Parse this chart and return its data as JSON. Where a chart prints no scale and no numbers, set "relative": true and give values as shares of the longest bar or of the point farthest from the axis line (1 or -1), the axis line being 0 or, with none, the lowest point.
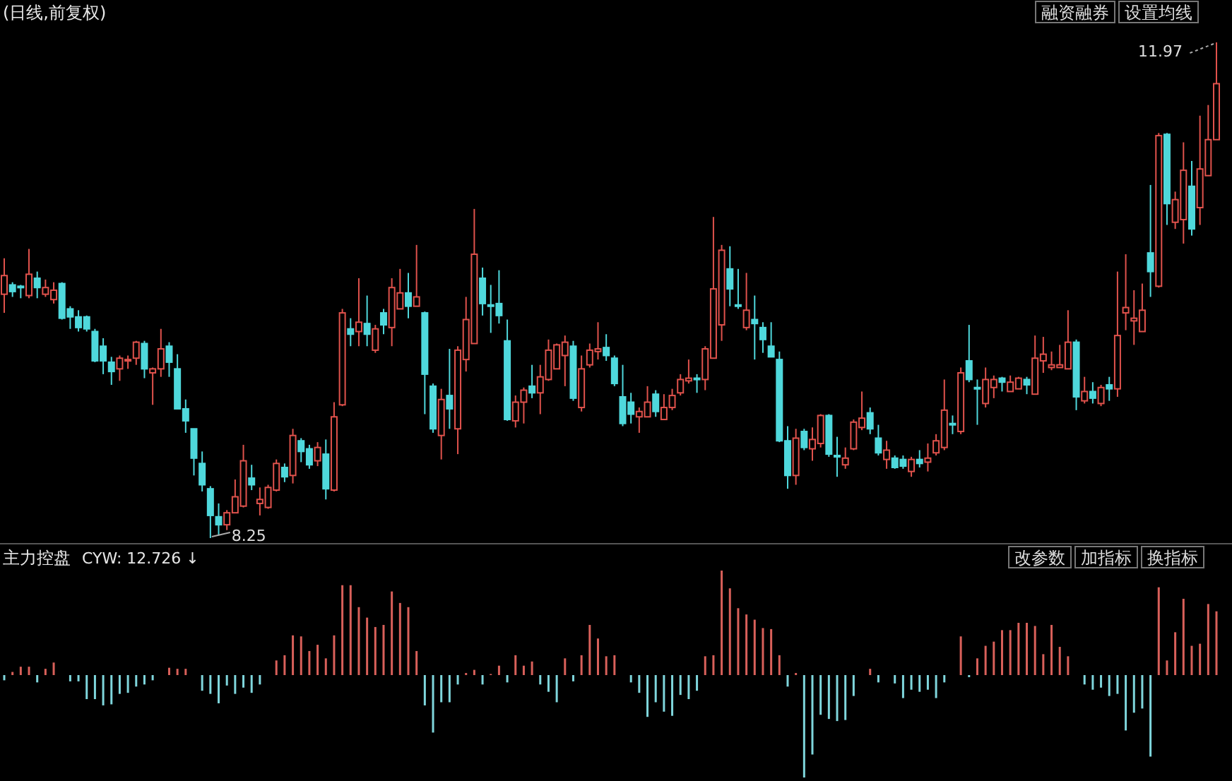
{
  "chart_data": [
    {
      "type": "candlestick",
      "title": "(日线,前复权)",
      "categories": [
        null,
        null,
        null,
        null,
        null,
        null,
        null,
        null,
        null,
        null,
        null,
        null,
        null,
        null,
        null,
        null,
        null,
        null,
        null,
        null,
        null,
        null,
        null,
        null,
        null,
        null,
        null,
        null,
        null,
        null,
        null,
        null,
        null,
        null,
        null,
        null,
        null,
        null,
        null,
        null,
        null,
        null,
        null,
        null,
        null,
        null,
        null,
        null,
        null,
        null,
        null,
        null,
        null,
        null,
        null,
        null,
        null,
        null,
        null,
        null,
        null,
        null,
        null,
        null,
        null,
        null,
        null,
        null,
        null,
        null,
        null,
        null,
        null,
        null,
        null,
        null,
        null,
        null,
        null,
        null,
        null,
        null,
        null,
        null,
        null,
        null,
        null,
        null,
        null,
        null,
        null,
        null,
        null,
        null,
        null,
        null,
        null,
        null,
        null,
        null,
        null,
        null,
        null,
        null,
        null,
        null,
        null,
        null,
        null,
        null,
        null,
        null,
        null,
        null,
        null,
        null,
        null,
        null,
        null,
        null,
        null,
        null,
        null,
        null,
        null,
        null,
        null,
        null,
        null,
        null,
        null,
        null,
        null,
        null,
        null,
        null,
        null,
        null,
        null,
        null,
        null,
        null,
        null,
        null,
        null,
        null,
        null,
        null
      ],
      "ohlc": [
        [
          10.08,
          10.35,
          9.94,
          10.22
        ],
        [
          10.15,
          10.17,
          10.06,
          10.1
        ],
        [
          10.14,
          10.15,
          10.05,
          10.13
        ],
        [
          10.07,
          10.42,
          10.05,
          10.23
        ],
        [
          10.2,
          10.25,
          10.05,
          10.13
        ],
        [
          10.08,
          10.19,
          10.06,
          10.13
        ],
        [
          10.04,
          10.17,
          10.01,
          10.11
        ],
        [
          10.16,
          10.17,
          9.89,
          9.9
        ],
        [
          9.97,
          9.99,
          9.82,
          9.91
        ],
        [
          9.91,
          9.96,
          9.8,
          9.83
        ],
        [
          9.91,
          9.92,
          9.8,
          9.82
        ],
        [
          9.8,
          9.82,
          9.57,
          9.58
        ],
        [
          9.69,
          9.75,
          9.48,
          9.58
        ],
        [
          9.57,
          9.61,
          9.4,
          9.5
        ],
        [
          9.52,
          9.62,
          9.43,
          9.6
        ],
        [
          9.58,
          9.62,
          9.52,
          9.59
        ],
        [
          9.6,
          9.73,
          9.55,
          9.72
        ],
        [
          9.71,
          9.73,
          9.45,
          9.52
        ],
        [
          9.49,
          9.53,
          9.25,
          9.52
        ],
        [
          9.52,
          9.82,
          9.46,
          9.67
        ],
        [
          9.69,
          9.72,
          9.46,
          9.57
        ],
        [
          9.52,
          9.63,
          9.22,
          9.22
        ],
        [
          9.22,
          9.29,
          9.04,
          9.13
        ],
        [
          9.07,
          9.07,
          8.72,
          8.85
        ],
        [
          8.81,
          8.9,
          8.6,
          8.65
        ],
        [
          8.62,
          8.64,
          8.25,
          8.42
        ],
        [
          8.41,
          8.51,
          8.27,
          8.35
        ],
        [
          8.35,
          8.46,
          8.31,
          8.44
        ],
        [
          8.44,
          8.69,
          8.44,
          8.56
        ],
        [
          8.49,
          8.95,
          8.48,
          8.83
        ],
        [
          8.7,
          8.8,
          8.61,
          8.65
        ],
        [
          8.51,
          8.63,
          8.42,
          8.54
        ],
        [
          8.48,
          8.65,
          8.47,
          8.63
        ],
        [
          8.61,
          8.84,
          8.6,
          8.81
        ],
        [
          8.78,
          8.81,
          8.67,
          8.71
        ],
        [
          8.72,
          9.07,
          8.66,
          9.02
        ],
        [
          8.98,
          9.0,
          8.82,
          8.9
        ],
        [
          8.92,
          8.95,
          8.77,
          8.8
        ],
        [
          8.83,
          8.97,
          8.79,
          8.93
        ],
        [
          8.88,
          8.99,
          8.54,
          8.62
        ],
        [
          8.61,
          9.27,
          8.6,
          9.16
        ],
        [
          9.25,
          9.97,
          9.24,
          9.94
        ],
        [
          9.82,
          9.9,
          9.69,
          9.78
        ],
        [
          9.8,
          10.2,
          9.69,
          9.87
        ],
        [
          9.86,
          10.07,
          9.69,
          9.78
        ],
        [
          9.66,
          9.85,
          9.64,
          9.82
        ],
        [
          9.94,
          9.97,
          9.78,
          9.85
        ],
        [
          9.83,
          10.2,
          9.69,
          10.13
        ],
        [
          9.97,
          10.27,
          9.97,
          10.09
        ],
        [
          10.09,
          10.24,
          9.9,
          9.99
        ],
        [
          9.99,
          10.45,
          9.99,
          10.06
        ],
        [
          9.94,
          9.95,
          9.18,
          9.48
        ],
        [
          9.39,
          9.41,
          9.04,
          9.07
        ],
        [
          9.02,
          9.37,
          8.84,
          9.29
        ],
        [
          9.32,
          9.67,
          9.07,
          9.22
        ],
        [
          9.07,
          9.69,
          8.88,
          9.66
        ],
        [
          9.59,
          10.06,
          9.5,
          9.89
        ],
        [
          9.71,
          10.72,
          9.71,
          10.38
        ],
        [
          10.2,
          10.28,
          9.92,
          10.01
        ],
        [
          10.0,
          10.15,
          9.79,
          9.99
        ],
        [
          10.01,
          10.26,
          9.86,
          9.92
        ],
        [
          9.73,
          9.89,
          9.13,
          9.14
        ],
        [
          9.13,
          9.32,
          9.08,
          9.27
        ],
        [
          9.27,
          9.38,
          9.11,
          9.36
        ],
        [
          9.39,
          9.55,
          9.3,
          9.34
        ],
        [
          9.34,
          9.55,
          9.18,
          9.46
        ],
        [
          9.44,
          9.74,
          9.43,
          9.66
        ],
        [
          9.52,
          9.71,
          9.52,
          9.7
        ],
        [
          9.62,
          9.77,
          9.39,
          9.72
        ],
        [
          9.69,
          9.73,
          9.28,
          9.3
        ],
        [
          9.23,
          9.62,
          9.2,
          9.52
        ],
        [
          9.55,
          9.71,
          9.53,
          9.66
        ],
        [
          9.65,
          9.87,
          9.59,
          9.67
        ],
        [
          9.68,
          9.78,
          9.58,
          9.62
        ],
        [
          9.6,
          9.62,
          9.39,
          9.41
        ],
        [
          9.31,
          9.55,
          9.09,
          9.11
        ],
        [
          9.27,
          9.34,
          9.11,
          9.18
        ],
        [
          9.16,
          9.23,
          9.04,
          9.2
        ],
        [
          9.16,
          9.39,
          9.16,
          9.27
        ],
        [
          9.33,
          9.36,
          9.16,
          9.2
        ],
        [
          9.14,
          9.33,
          9.14,
          9.23
        ],
        [
          9.23,
          9.37,
          9.21,
          9.32
        ],
        [
          9.34,
          9.48,
          9.32,
          9.44
        ],
        [
          9.43,
          9.59,
          9.41,
          9.45
        ],
        [
          9.45,
          9.48,
          9.34,
          9.44
        ],
        [
          9.44,
          9.69,
          9.36,
          9.67
        ],
        [
          9.6,
          10.66,
          9.6,
          10.12
        ],
        [
          9.85,
          10.45,
          9.73,
          10.41
        ],
        [
          10.27,
          10.44,
          9.99,
          10.12
        ],
        [
          10.0,
          10.27,
          9.97,
          9.99
        ],
        [
          9.83,
          10.24,
          9.81,
          9.96
        ],
        [
          9.89,
          10.07,
          9.59,
          9.86
        ],
        [
          9.83,
          9.87,
          9.64,
          9.74
        ],
        [
          9.69,
          9.87,
          9.61,
          9.61
        ],
        [
          9.59,
          9.65,
          8.97,
          8.98
        ],
        [
          8.98,
          9.09,
          8.62,
          8.72
        ],
        [
          8.72,
          9.07,
          8.65,
          9.0
        ],
        [
          9.05,
          9.07,
          8.91,
          8.93
        ],
        [
          8.92,
          9.08,
          8.83,
          8.99
        ],
        [
          8.96,
          9.18,
          8.93,
          9.17
        ],
        [
          9.17,
          9.18,
          8.86,
          8.88
        ],
        [
          8.87,
          9.01,
          8.71,
          8.86
        ],
        [
          8.8,
          8.93,
          8.77,
          8.85
        ],
        [
          8.92,
          9.14,
          8.91,
          9.12
        ],
        [
          9.08,
          9.35,
          9.06,
          9.15
        ],
        [
          9.19,
          9.23,
          9.03,
          9.07
        ],
        [
          9.0,
          9.1,
          8.87,
          8.89
        ],
        [
          8.84,
          8.98,
          8.77,
          8.91
        ],
        [
          8.85,
          8.87,
          8.77,
          8.78
        ],
        [
          8.84,
          8.87,
          8.77,
          8.79
        ],
        [
          8.75,
          8.86,
          8.71,
          8.84
        ],
        [
          8.84,
          8.91,
          8.78,
          8.81
        ],
        [
          8.82,
          8.96,
          8.75,
          8.85
        ],
        [
          8.89,
          9.03,
          8.87,
          8.98
        ],
        [
          8.93,
          9.44,
          8.91,
          9.21
        ],
        [
          9.11,
          9.17,
          9.03,
          9.1
        ],
        [
          9.05,
          9.53,
          9.03,
          9.49
        ],
        [
          9.58,
          9.85,
          9.42,
          9.44
        ],
        [
          9.38,
          9.44,
          9.1,
          9.37
        ],
        [
          9.26,
          9.53,
          9.23,
          9.44
        ],
        [
          9.38,
          9.47,
          9.3,
          9.44
        ],
        [
          9.45,
          9.46,
          9.35,
          9.42
        ],
        [
          9.35,
          9.47,
          9.35,
          9.42
        ],
        [
          9.37,
          9.46,
          9.37,
          9.45
        ],
        [
          9.44,
          9.46,
          9.33,
          9.4
        ],
        [
          9.33,
          9.77,
          9.33,
          9.6
        ],
        [
          9.58,
          9.76,
          9.49,
          9.63
        ],
        [
          9.53,
          9.65,
          9.51,
          9.55
        ],
        [
          9.53,
          9.7,
          9.53,
          9.55
        ],
        [
          9.52,
          9.96,
          9.52,
          9.72
        ],
        [
          9.72,
          9.74,
          9.21,
          9.31
        ],
        [
          9.28,
          9.46,
          9.26,
          9.35
        ],
        [
          9.35,
          9.42,
          9.26,
          9.3
        ],
        [
          9.26,
          9.4,
          9.24,
          9.38
        ],
        [
          9.4,
          9.46,
          9.28,
          9.37
        ],
        [
          9.37,
          10.25,
          9.31,
          9.77
        ],
        [
          9.94,
          10.38,
          9.81,
          9.98
        ],
        [
          9.88,
          10.11,
          9.7,
          9.9
        ],
        [
          9.8,
          10.16,
          9.8,
          9.96
        ],
        [
          10.39,
          10.9,
          10.06,
          10.25
        ],
        [
          10.14,
          11.29,
          10.13,
          11.27
        ],
        [
          11.28,
          11.29,
          10.6,
          10.76
        ],
        [
          10.62,
          10.85,
          10.57,
          10.79
        ],
        [
          10.64,
          11.22,
          10.46,
          11.01
        ],
        [
          10.89,
          11.08,
          10.52,
          10.57
        ],
        [
          10.73,
          11.42,
          10.6,
          11.02
        ],
        [
          10.97,
          11.5,
          10.97,
          11.24
        ],
        [
          11.24,
          11.97,
          11.24,
          11.66
        ]
      ],
      "colors": [
        "#e0524c",
        "#4fd8dc",
        "#4fd8dc",
        "#e0524c",
        "#4fd8dc",
        "#e0524c",
        "#e0524c",
        "#4fd8dc",
        "#4fd8dc",
        "#4fd8dc",
        "#4fd8dc",
        "#4fd8dc",
        "#4fd8dc",
        "#4fd8dc",
        "#e0524c",
        "#e0524c",
        "#e0524c",
        "#4fd8dc",
        "#e0524c",
        "#e0524c",
        "#4fd8dc",
        "#4fd8dc",
        "#4fd8dc",
        "#4fd8dc",
        "#4fd8dc",
        "#4fd8dc",
        "#4fd8dc",
        "#e0524c",
        "#e0524c",
        "#e0524c",
        "#4fd8dc",
        "#e0524c",
        "#e0524c",
        "#e0524c",
        "#4fd8dc",
        "#e0524c",
        "#4fd8dc",
        "#4fd8dc",
        "#e0524c",
        "#4fd8dc",
        "#e0524c",
        "#e0524c",
        "#4fd8dc",
        "#e0524c",
        "#4fd8dc",
        "#e0524c",
        "#4fd8dc",
        "#e0524c",
        "#e0524c",
        "#4fd8dc",
        "#e0524c",
        "#4fd8dc",
        "#4fd8dc",
        "#e0524c",
        "#4fd8dc",
        "#e0524c",
        "#e0524c",
        "#e0524c",
        "#4fd8dc",
        "#4fd8dc",
        "#4fd8dc",
        "#4fd8dc",
        "#e0524c",
        "#e0524c",
        "#4fd8dc",
        "#e0524c",
        "#e0524c",
        "#e0524c",
        "#e0524c",
        "#4fd8dc",
        "#e0524c",
        "#e0524c",
        "#e0524c",
        "#4fd8dc",
        "#4fd8dc",
        "#4fd8dc",
        "#4fd8dc",
        "#e0524c",
        "#e0524c",
        "#4fd8dc",
        "#e0524c",
        "#e0524c",
        "#e0524c",
        "#e0524c",
        "#4fd8dc",
        "#e0524c",
        "#e0524c",
        "#e0524c",
        "#4fd8dc",
        "#4fd8dc",
        "#e0524c",
        "#4fd8dc",
        "#4fd8dc",
        "#4fd8dc",
        "#4fd8dc",
        "#4fd8dc",
        "#e0524c",
        "#4fd8dc",
        "#e0524c",
        "#e0524c",
        "#4fd8dc",
        "#4fd8dc",
        "#e0524c",
        "#e0524c",
        "#e0524c",
        "#4fd8dc",
        "#4fd8dc",
        "#e0524c",
        "#4fd8dc",
        "#4fd8dc",
        "#e0524c",
        "#4fd8dc",
        "#e0524c",
        "#e0524c",
        "#e0524c",
        "#4fd8dc",
        "#e0524c",
        "#4fd8dc",
        "#4fd8dc",
        "#e0524c",
        "#e0524c",
        "#4fd8dc",
        "#e0524c",
        "#e0524c",
        "#4fd8dc",
        "#e0524c",
        "#e0524c",
        "#e0524c",
        "#e0524c",
        "#e0524c",
        "#4fd8dc",
        "#e0524c",
        "#4fd8dc",
        "#e0524c",
        "#4fd8dc",
        "#e0524c",
        "#e0524c",
        "#e0524c",
        "#e0524c",
        "#4fd8dc",
        "#e0524c",
        "#4fd8dc",
        "#e0524c",
        "#e0524c",
        "#4fd8dc",
        "#e0524c",
        "#e0524c",
        "#e0524c"
      ],
      "annotations": [
        "11.97",
        "8.25",
        "融资融券",
        "设置均线"
      ]
    },
    {
      "type": "bar",
      "title": "主力控盘",
      "subtitle": "CYW: 12.726 ↓",
      "relative": true,
      "categories": [
        null,
        null,
        null,
        null,
        null,
        null,
        null,
        null,
        null,
        null,
        null,
        null,
        null,
        null,
        null,
        null,
        null,
        null,
        null,
        null,
        null,
        null,
        null,
        null,
        null,
        null,
        null,
        null,
        null,
        null,
        null,
        null,
        null,
        null,
        null,
        null,
        null,
        null,
        null,
        null,
        null,
        null,
        null,
        null,
        null,
        null,
        null,
        null,
        null,
        null,
        null,
        null,
        null,
        null,
        null,
        null,
        null,
        null,
        null,
        null,
        null,
        null,
        null,
        null,
        null,
        null,
        null,
        null,
        null,
        null,
        null,
        null,
        null,
        null,
        null,
        null,
        null,
        null,
        null,
        null,
        null,
        null,
        null,
        null,
        null,
        null,
        null,
        null,
        null,
        null,
        null,
        null,
        null,
        null,
        null,
        null,
        null,
        null,
        null,
        null,
        null,
        null,
        null,
        null,
        null,
        null,
        null,
        null,
        null,
        null,
        null,
        null,
        null,
        null,
        null,
        null,
        null,
        null,
        null,
        null,
        null,
        null,
        null,
        null,
        null,
        null,
        null,
        null,
        null,
        null,
        null,
        null,
        null,
        null,
        null,
        null,
        null,
        null,
        null,
        null,
        null,
        null,
        null,
        null,
        null,
        null,
        null,
        null
      ],
      "values": [
        -0.05,
        0.03,
        0.08,
        0.08,
        -0.07,
        0.06,
        0.12,
        0,
        -0.06,
        -0.06,
        -0.23,
        -0.23,
        -0.29,
        -0.28,
        -0.18,
        -0.17,
        -0.11,
        -0.09,
        -0.05,
        0,
        0.07,
        0.06,
        0.06,
        0,
        -0.15,
        -0.18,
        -0.27,
        -0.1,
        -0.18,
        -0.12,
        -0.17,
        -0.09,
        0,
        0.14,
        0.19,
        0.38,
        0.37,
        0.23,
        0.29,
        0.16,
        0.38,
        0.86,
        0.86,
        0.65,
        0.55,
        0.46,
        0.48,
        0.8,
        0.69,
        0.65,
        0.23,
        -0.29,
        -0.55,
        -0.26,
        -0.26,
        -0.09,
        0.02,
        0.05,
        -0.09,
        0.01,
        0.09,
        -0.07,
        0.19,
        0.09,
        0.13,
        -0.09,
        -0.16,
        -0.26,
        0.16,
        -0.06,
        0.19,
        0.48,
        0.35,
        0.18,
        0.19,
        0,
        -0.07,
        -0.17,
        -0.4,
        -0.26,
        -0.35,
        -0.39,
        -0.19,
        -0.23,
        -0.15,
        0.18,
        0.19,
        1,
        0.83,
        0.64,
        0.58,
        0.53,
        0.45,
        0.44,
        0.19,
        -0.11,
        0.02,
        -0.98,
        -0.76,
        -0.38,
        -0.42,
        -0.44,
        -0.43,
        -0.2,
        0,
        0.06,
        -0.07,
        0,
        -0.08,
        -0.22,
        -0.14,
        -0.16,
        -0.14,
        -0.22,
        -0.07,
        0,
        0.37,
        -0.02,
        0.16,
        0.28,
        0.32,
        0.43,
        0.43,
        0.5,
        0.5,
        0.47,
        0.2,
        0.48,
        0.27,
        0.18,
        0,
        -0.09,
        -0.14,
        -0.12,
        -0.2,
        -0.18,
        -0.53,
        -0.36,
        -0.32,
        -0.78,
        0.84,
        0.14,
        0.41,
        0.73,
        0.28,
        0.3,
        0.68,
        0.61
      ],
      "colors": [
        "#7fd6dc",
        "#d9605a",
        "#d9605a",
        "#d9605a",
        "#7fd6dc",
        "#d9605a",
        "#d9605a",
        "#7fd6dc",
        "#7fd6dc",
        "#7fd6dc",
        "#7fd6dc",
        "#7fd6dc",
        "#7fd6dc",
        "#7fd6dc",
        "#7fd6dc",
        "#7fd6dc",
        "#7fd6dc",
        "#7fd6dc",
        "#7fd6dc",
        "#7fd6dc",
        "#d9605a",
        "#d9605a",
        "#d9605a",
        "#7fd6dc",
        "#7fd6dc",
        "#7fd6dc",
        "#7fd6dc",
        "#7fd6dc",
        "#7fd6dc",
        "#7fd6dc",
        "#7fd6dc",
        "#7fd6dc",
        "#7fd6dc",
        "#d9605a",
        "#d9605a",
        "#d9605a",
        "#d9605a",
        "#d9605a",
        "#d9605a",
        "#d9605a",
        "#d9605a",
        "#d9605a",
        "#d9605a",
        "#d9605a",
        "#d9605a",
        "#d9605a",
        "#d9605a",
        "#d9605a",
        "#d9605a",
        "#d9605a",
        "#d9605a",
        "#7fd6dc",
        "#7fd6dc",
        "#7fd6dc",
        "#7fd6dc",
        "#7fd6dc",
        "#d9605a",
        "#d9605a",
        "#7fd6dc",
        "#d9605a",
        "#d9605a",
        "#7fd6dc",
        "#d9605a",
        "#d9605a",
        "#d9605a",
        "#7fd6dc",
        "#7fd6dc",
        "#7fd6dc",
        "#d9605a",
        "#7fd6dc",
        "#d9605a",
        "#d9605a",
        "#d9605a",
        "#d9605a",
        "#d9605a",
        "#7fd6dc",
        "#7fd6dc",
        "#7fd6dc",
        "#7fd6dc",
        "#7fd6dc",
        "#7fd6dc",
        "#7fd6dc",
        "#7fd6dc",
        "#7fd6dc",
        "#7fd6dc",
        "#d9605a",
        "#d9605a",
        "#d9605a",
        "#d9605a",
        "#d9605a",
        "#d9605a",
        "#d9605a",
        "#d9605a",
        "#d9605a",
        "#d9605a",
        "#7fd6dc",
        "#d9605a",
        "#7fd6dc",
        "#7fd6dc",
        "#7fd6dc",
        "#7fd6dc",
        "#7fd6dc",
        "#7fd6dc",
        "#7fd6dc",
        "#7fd6dc",
        "#d9605a",
        "#7fd6dc",
        "#7fd6dc",
        "#7fd6dc",
        "#7fd6dc",
        "#7fd6dc",
        "#7fd6dc",
        "#7fd6dc",
        "#7fd6dc",
        "#7fd6dc",
        "#7fd6dc",
        "#d9605a",
        "#7fd6dc",
        "#d9605a",
        "#d9605a",
        "#d9605a",
        "#d9605a",
        "#d9605a",
        "#d9605a",
        "#d9605a",
        "#d9605a",
        "#d9605a",
        "#d9605a",
        "#d9605a",
        "#d9605a",
        "#7fd6dc",
        "#7fd6dc",
        "#7fd6dc",
        "#7fd6dc",
        "#7fd6dc",
        "#7fd6dc",
        "#7fd6dc",
        "#7fd6dc",
        "#7fd6dc",
        "#7fd6dc",
        "#d9605a",
        "#d9605a",
        "#d9605a",
        "#d9605a",
        "#d9605a",
        "#d9605a",
        "#d9605a",
        "#d9605a"
      ],
      "annotations": [
        "改参数",
        "加指标",
        "换指标"
      ]
    }
  ]
}
